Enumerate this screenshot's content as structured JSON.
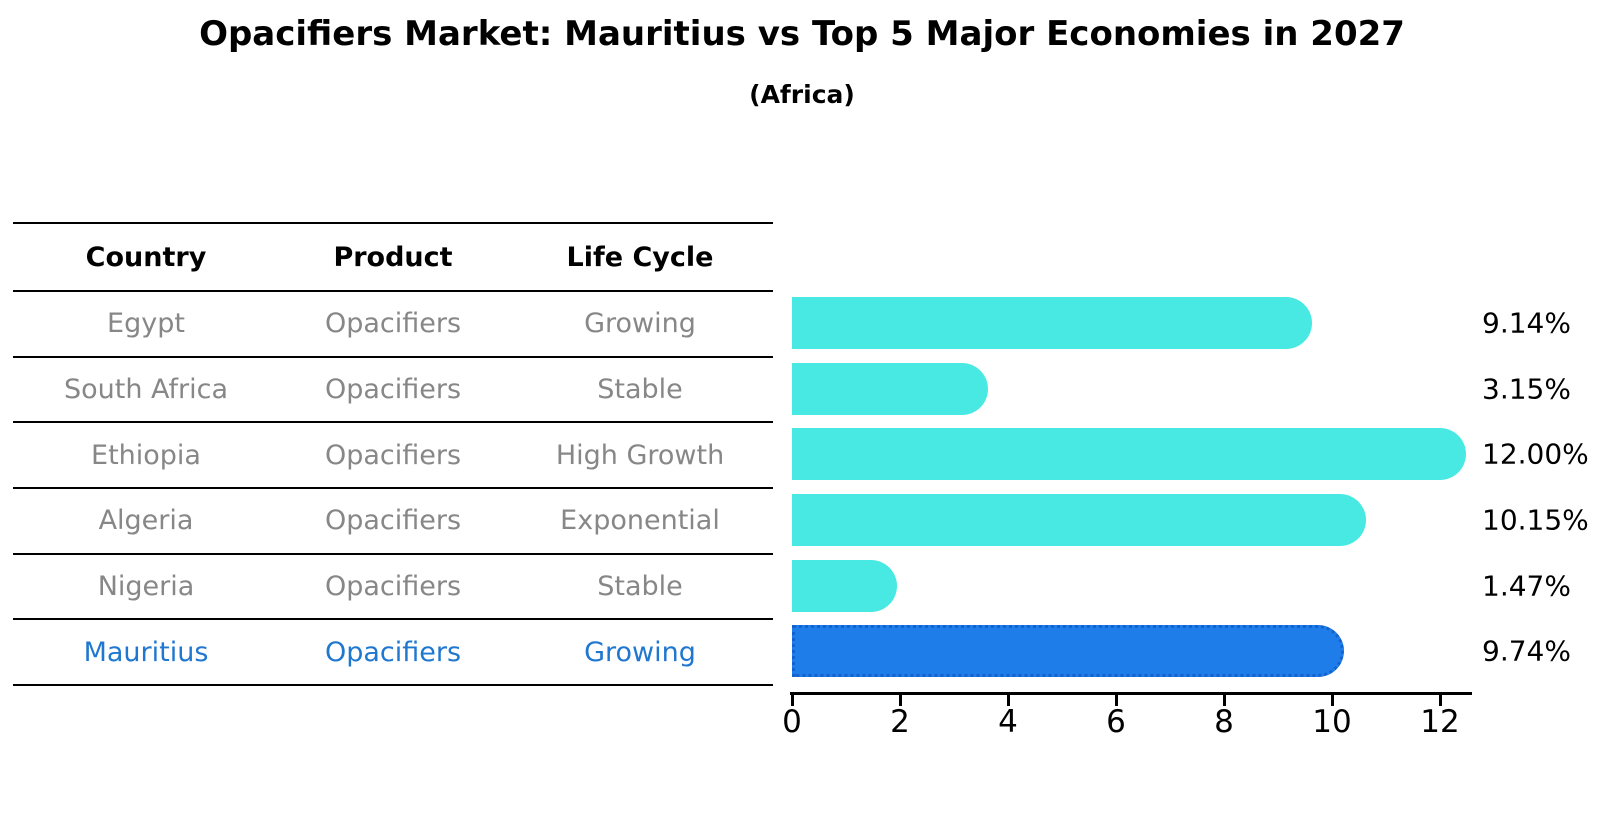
{
  "title": "Opacifiers Market: Mauritius vs Top 5 Major Economies in 2027",
  "subtitle": "(Africa)",
  "table": {
    "headers": [
      "Country",
      "Product",
      "Life Cycle"
    ],
    "rows": [
      {
        "country": "Egypt",
        "product": "Opacifiers",
        "life_cycle": "Growing"
      },
      {
        "country": "South Africa",
        "product": "Opacifiers",
        "life_cycle": "Stable"
      },
      {
        "country": "Ethiopia",
        "product": "Opacifiers",
        "life_cycle": "High Growth"
      },
      {
        "country": "Algeria",
        "product": "Opacifiers",
        "life_cycle": "Exponential"
      },
      {
        "country": "Nigeria",
        "product": "Opacifiers",
        "life_cycle": "Stable"
      },
      {
        "country": "Mauritius",
        "product": "Opacifiers",
        "life_cycle": "Growing"
      }
    ],
    "highlight_row": 5,
    "text_color": "#878787",
    "highlight_text_color": "#1F77D0"
  },
  "chart_data": {
    "type": "bar",
    "orientation": "horizontal",
    "title": "Opacifiers Market: Mauritius vs Top 5 Major Economies in 2027",
    "subtitle": "(Africa)",
    "categories": [
      "Egypt",
      "South Africa",
      "Ethiopia",
      "Algeria",
      "Nigeria",
      "Mauritius"
    ],
    "values": [
      9.14,
      3.15,
      12.0,
      10.15,
      1.47,
      9.74
    ],
    "value_labels": [
      "9.14%",
      "3.15%",
      "12.00%",
      "10.15%",
      "1.47%",
      "9.74%"
    ],
    "highlight_index": 5,
    "highlight_category": "Mauritius",
    "x_ticks": [
      0,
      2,
      4,
      6,
      8,
      10,
      12
    ],
    "xlim": [
      0,
      12.6
    ],
    "grid": false,
    "legend": "none",
    "bar_color": "#48E9E2",
    "highlight_bar_color": "#1E7DE9",
    "highlight_border_color": "#1462CF",
    "axis_color": "#000000",
    "value_label_color": "#000000"
  }
}
